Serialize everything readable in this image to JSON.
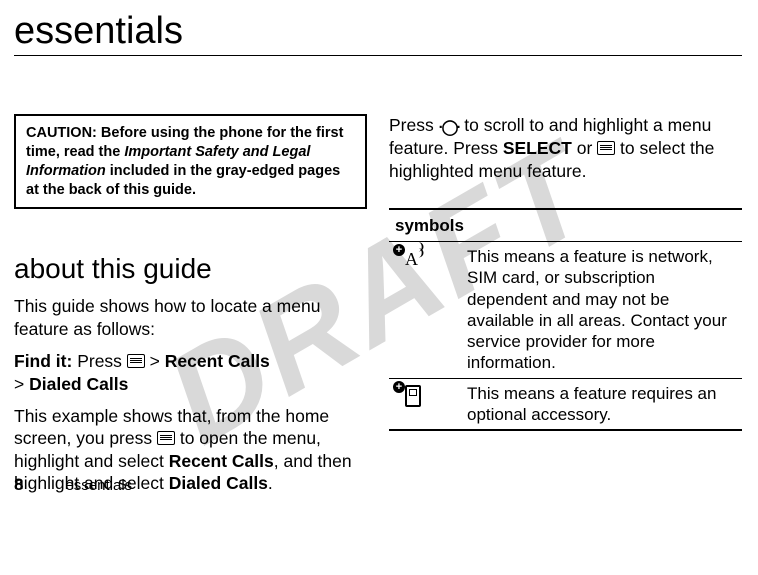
{
  "watermark": "DRAFT",
  "page_heading": "essentials",
  "caution": {
    "label": "CAUTION: ",
    "text_before": "Before using the phone for the first time, read the ",
    "italic": "Important Safety and Legal Information",
    "text_after": " included in the gray-edged pages at the back of this guide."
  },
  "section_heading": "about this guide",
  "intro": "This guide shows how to locate a menu feature as follows:",
  "find_it": {
    "label": "Find it: ",
    "press": "Press ",
    "gt1": " > ",
    "recent": "Recent Calls",
    "gt2": "> ",
    "dialed": "Dialed Calls"
  },
  "example": {
    "t1": "This example shows that, from the home screen, you press ",
    "t2": " to open the menu, highlight and select ",
    "recent": "Recent Calls",
    "t3": ", and then highlight and select ",
    "dialed": "Dialed Calls",
    "t4": "."
  },
  "right_intro": {
    "t1": "Press ",
    "t2": " to scroll to and highlight a menu feature. Press ",
    "select": "SELECT",
    "t3": " or ",
    "t4": " to select the highlighted menu feature."
  },
  "symbols": {
    "header": "symbols",
    "rows": [
      {
        "desc": "This means a feature is network, SIM card, or subscription dependent and may not be available in all areas. Contact your service provider for more information."
      },
      {
        "desc": "This means a feature requires an optional accessory."
      }
    ]
  },
  "footer": {
    "page": "8",
    "label": "essentials"
  }
}
